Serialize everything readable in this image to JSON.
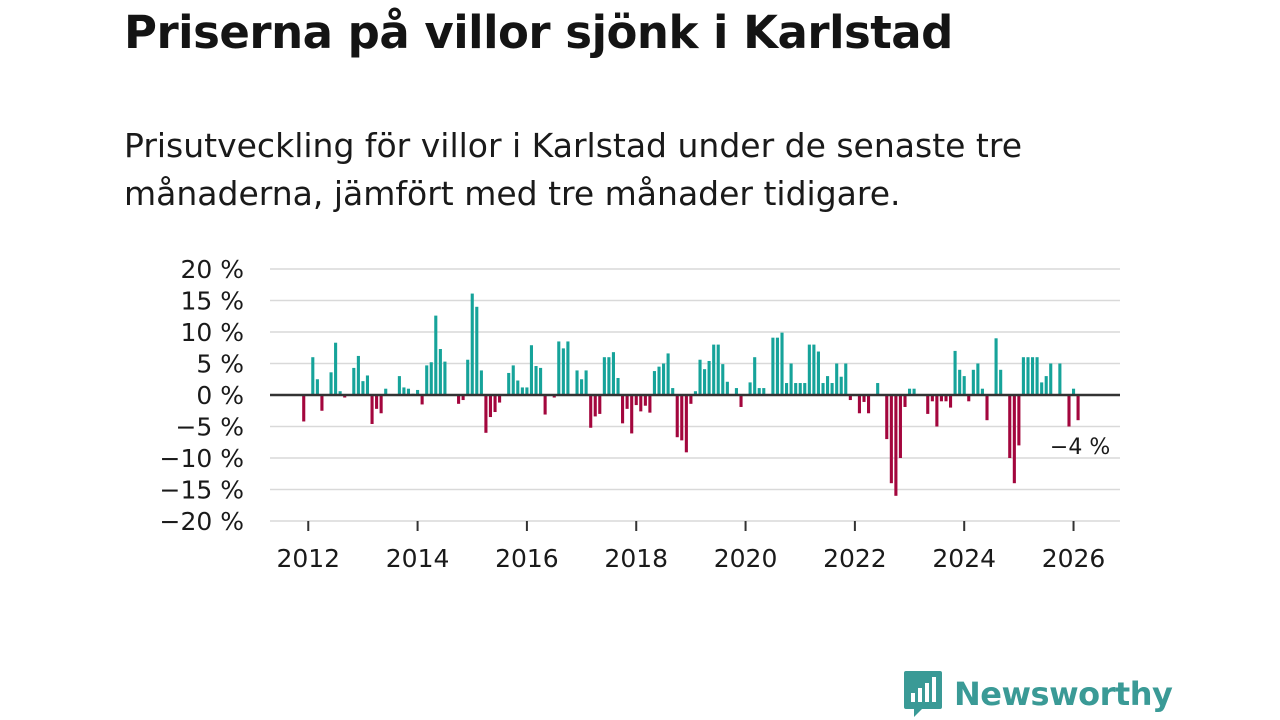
{
  "title": "Priserna på villor sjönk i Karlstad",
  "subtitle": "Prisutveckling för villor i Karlstad under de senaste tre månaderna, jämfört med tre månader tidigare.",
  "brand": {
    "name": "Newsworthy",
    "icon": "bar-chart-speech-bubble-icon"
  },
  "colors": {
    "positive": "#16a39a",
    "negative": "#a3063d",
    "grid": "#d9d9d9",
    "axis": "#333333",
    "brand": "#3a9a96"
  },
  "chart_data": {
    "type": "bar",
    "title": "Priserna på villor sjönk i Karlstad",
    "xlabel": "",
    "ylabel": "",
    "ylim": [
      -20,
      20
    ],
    "xlim": [
      2011.3,
      2026.85
    ],
    "y_ticks": [
      20,
      15,
      10,
      5,
      0,
      -5,
      -10,
      -15,
      -20
    ],
    "y_tick_labels": [
      "20 %",
      "15 %",
      "10 %",
      "5 %",
      "0 %",
      "−5 %",
      "−10 %",
      "−15 %",
      "−20 %"
    ],
    "x_ticks": [
      2012,
      2014,
      2016,
      2018,
      2020,
      2022,
      2024,
      2026
    ],
    "x_tick_labels": [
      "2012",
      "2014",
      "2016",
      "2018",
      "2020",
      "2022",
      "2024",
      "2026"
    ],
    "grid": true,
    "annotation": {
      "text": "−4 %",
      "x": 2026.08,
      "y": -4
    },
    "series": [
      {
        "name": "Prisutveckling",
        "x": [
          2011.917,
          2012,
          2012.083,
          2012.167,
          2012.25,
          2012.333,
          2012.417,
          2012.5,
          2012.583,
          2012.667,
          2012.75,
          2012.833,
          2012.917,
          2013,
          2013.083,
          2013.167,
          2013.25,
          2013.333,
          2013.417,
          2013.5,
          2013.583,
          2013.667,
          2013.75,
          2013.833,
          2013.917,
          2014,
          2014.083,
          2014.167,
          2014.25,
          2014.333,
          2014.417,
          2014.5,
          2014.583,
          2014.667,
          2014.75,
          2014.833,
          2014.917,
          2015,
          2015.083,
          2015.167,
          2015.25,
          2015.333,
          2015.417,
          2015.5,
          2015.583,
          2015.667,
          2015.75,
          2015.833,
          2015.917,
          2016,
          2016.083,
          2016.167,
          2016.25,
          2016.333,
          2016.417,
          2016.5,
          2016.583,
          2016.667,
          2016.75,
          2016.833,
          2016.917,
          2017,
          2017.083,
          2017.167,
          2017.25,
          2017.333,
          2017.417,
          2017.5,
          2017.583,
          2017.667,
          2017.75,
          2017.833,
          2017.917,
          2018,
          2018.083,
          2018.167,
          2018.25,
          2018.333,
          2018.417,
          2018.5,
          2018.583,
          2018.667,
          2018.75,
          2018.833,
          2018.917,
          2019,
          2019.083,
          2019.167,
          2019.25,
          2019.333,
          2019.417,
          2019.5,
          2019.583,
          2019.667,
          2019.75,
          2019.833,
          2019.917,
          2020,
          2020.083,
          2020.167,
          2020.25,
          2020.333,
          2020.417,
          2020.5,
          2020.583,
          2020.667,
          2020.75,
          2020.833,
          2020.917,
          2021,
          2021.083,
          2021.167,
          2021.25,
          2021.333,
          2021.417,
          2021.5,
          2021.583,
          2021.667,
          2021.75,
          2021.833,
          2021.917,
          2022,
          2022.083,
          2022.167,
          2022.25,
          2022.333,
          2022.417,
          2022.5,
          2022.583,
          2022.667,
          2022.75,
          2022.833,
          2022.917,
          2023,
          2023.083,
          2023.167,
          2023.25,
          2023.333,
          2023.417,
          2023.5,
          2023.583,
          2023.667,
          2023.75,
          2023.833,
          2023.917,
          2024,
          2024.083,
          2024.167,
          2024.25,
          2024.333,
          2024.417,
          2024.5,
          2024.583,
          2024.667,
          2024.75,
          2024.833,
          2024.917,
          2025,
          2025.083,
          2025.167,
          2025.25,
          2025.333,
          2025.417,
          2025.5,
          2025.583,
          2025.667,
          2025.75,
          2025.833,
          2025.917,
          2026,
          2026.083
        ],
        "values": [
          -4.2,
          0,
          6,
          2.5,
          -2.5,
          0,
          3.6,
          8.3,
          0.6,
          -0.4,
          0,
          4.3,
          6.2,
          2.2,
          3.1,
          -4.6,
          -2.2,
          -2.9,
          1,
          0,
          0,
          3,
          1.2,
          1,
          0.2,
          0.8,
          -1.5,
          4.7,
          5.2,
          12.6,
          7.3,
          5.3,
          0,
          0,
          -1.4,
          -0.8,
          5.6,
          16.1,
          14,
          3.9,
          -6,
          -3.5,
          -2.7,
          -1.2,
          0,
          3.5,
          4.7,
          2.3,
          1.2,
          1.2,
          7.9,
          4.6,
          4.3,
          -3.1,
          0,
          -0.4,
          8.5,
          7.4,
          8.5,
          0,
          3.9,
          2.5,
          3.9,
          -5.2,
          -3.4,
          -3,
          6,
          6,
          6.8,
          2.7,
          -4.5,
          -2.2,
          -6.1,
          -1.6,
          -2.6,
          -1.7,
          -2.8,
          3.8,
          4.5,
          5,
          6.6,
          1.1,
          -6.7,
          -7.2,
          -9.1,
          -1.4,
          0.6,
          5.6,
          4.1,
          5.4,
          8,
          8,
          4.9,
          2.1,
          0,
          1.1,
          -1.9,
          0,
          2,
          6,
          1.1,
          1.1,
          0,
          9.1,
          9.1,
          9.9,
          1.9,
          5,
          1.9,
          1.9,
          1.9,
          8,
          8,
          6.9,
          1.9,
          3,
          1.9,
          5,
          2.9,
          5,
          -0.8,
          0,
          -2.9,
          -1.1,
          -2.9,
          0,
          1.9,
          0,
          -7,
          -14,
          -16,
          -10,
          -1.9,
          1,
          1,
          0,
          0,
          -3,
          -1,
          -5,
          -1,
          -1,
          -2,
          7,
          4,
          3,
          -1,
          4,
          5,
          1,
          -4,
          0,
          9,
          4,
          0,
          -10,
          -14,
          -8,
          6,
          6,
          6,
          6,
          2,
          3,
          5,
          0,
          5,
          0,
          -5,
          1,
          -4
        ]
      }
    ]
  }
}
